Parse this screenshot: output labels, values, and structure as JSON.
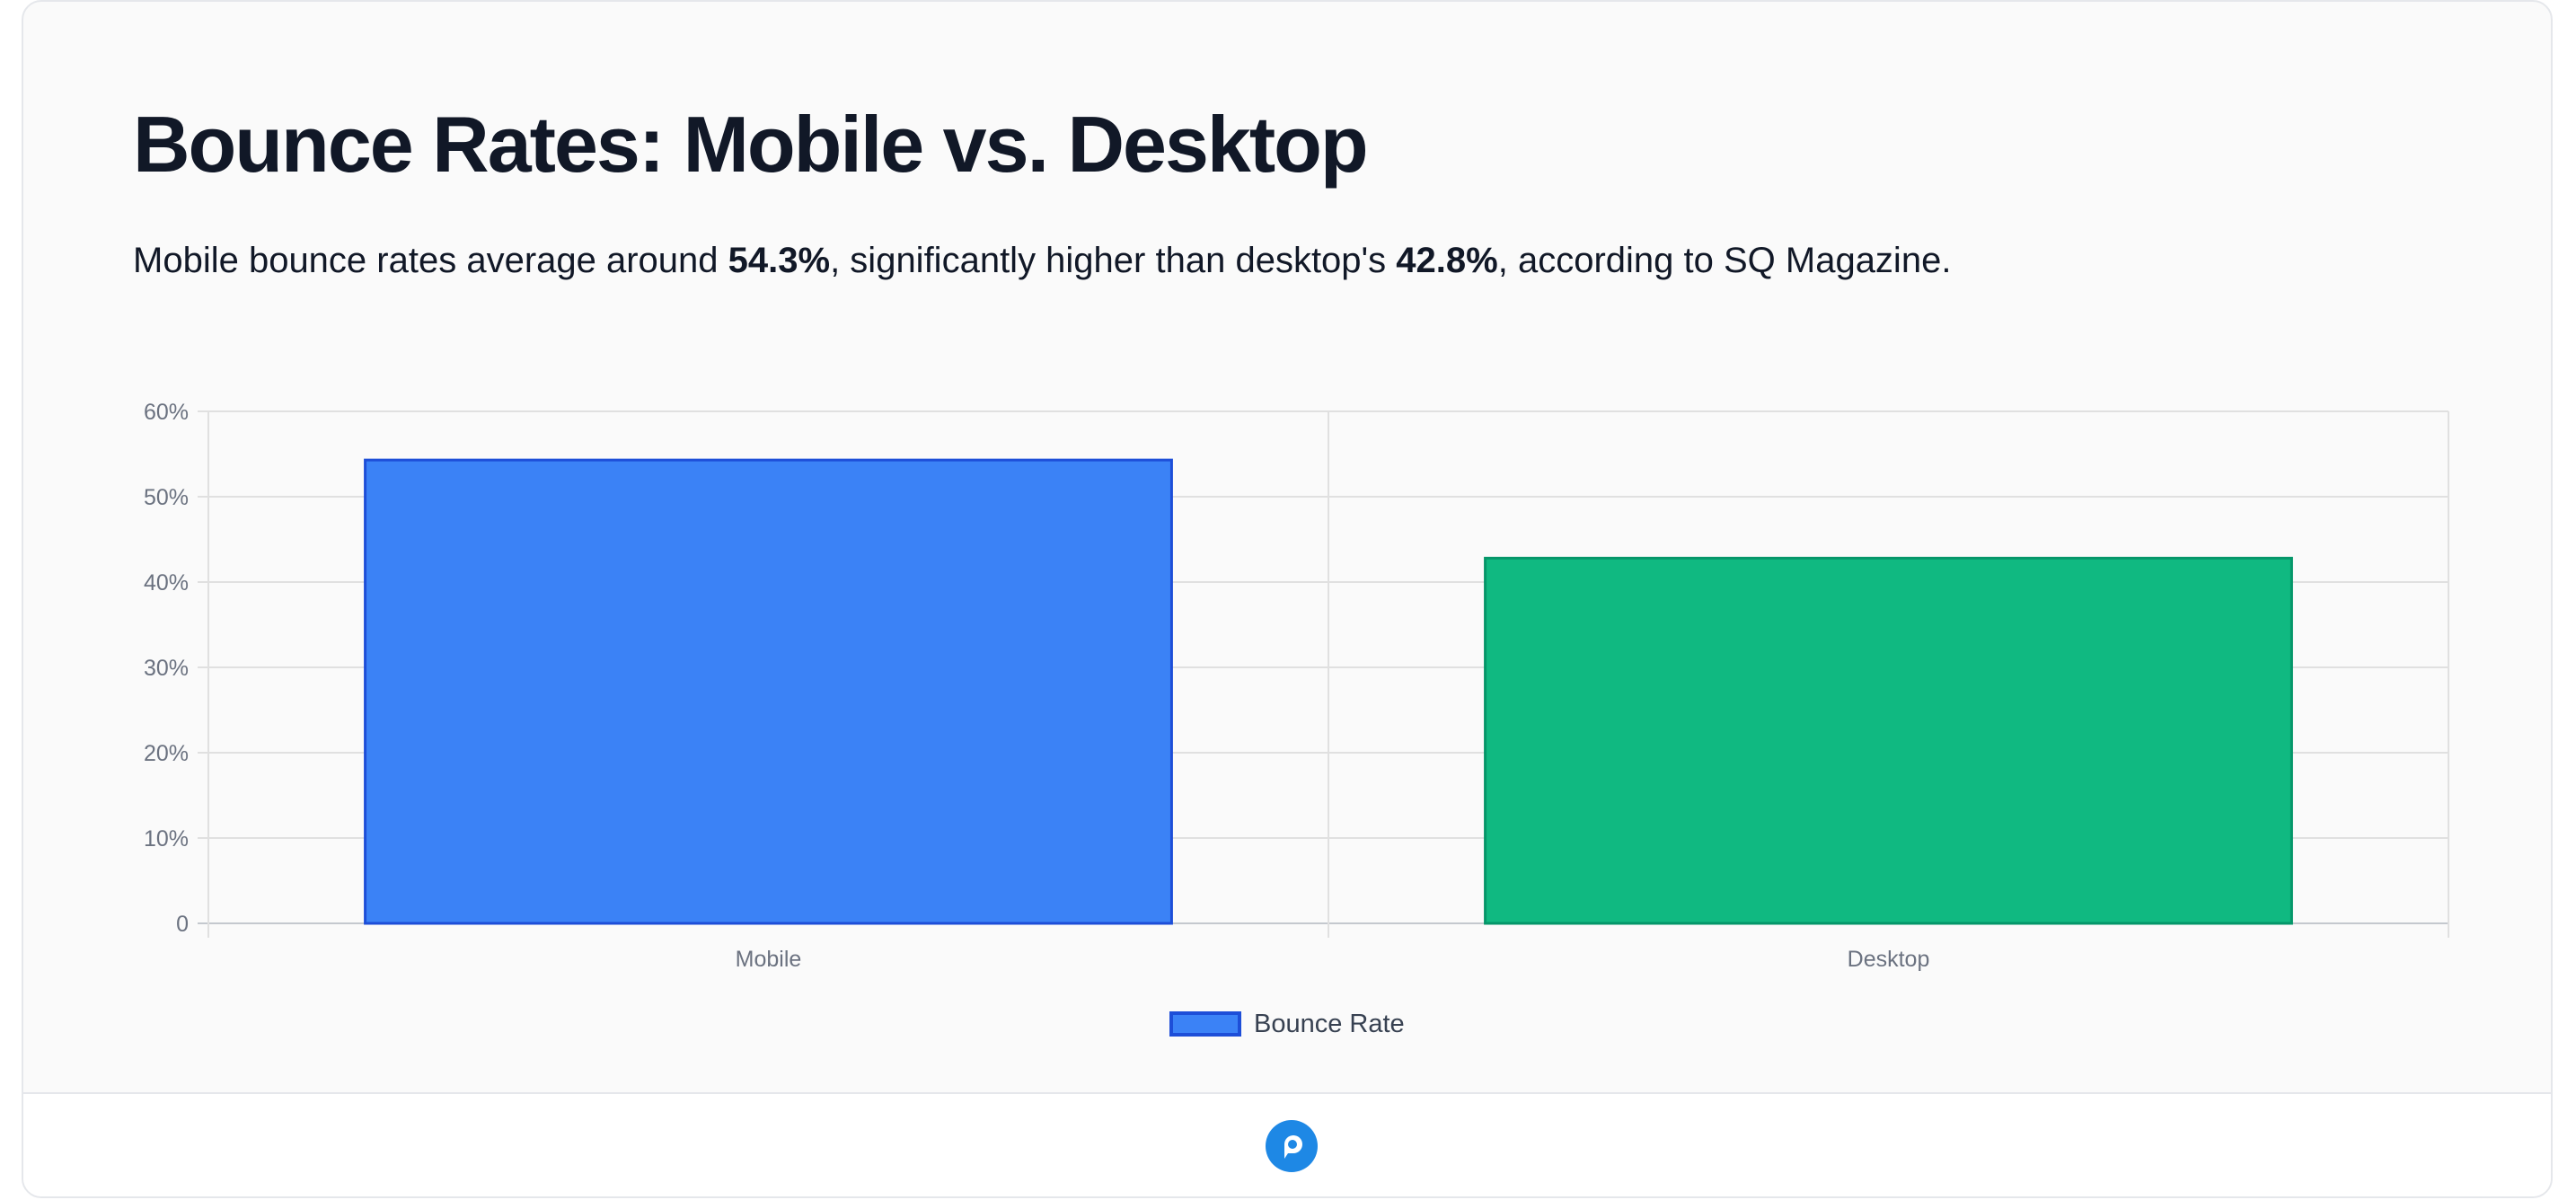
{
  "header": {
    "title": "Bounce Rates: Mobile vs. Desktop",
    "subtitle_pre": "Mobile bounce rates average around ",
    "subtitle_value_1": "54.3%",
    "subtitle_mid": ", significantly higher than desktop's ",
    "subtitle_value_2": "42.8%",
    "subtitle_post": ", according to SQ Magazine."
  },
  "chart_data": {
    "type": "bar",
    "categories": [
      "Mobile",
      "Desktop"
    ],
    "series": [
      {
        "name": "Bounce Rate",
        "values": [
          54.3,
          42.8
        ],
        "colors": [
          "#3b82f6",
          "#10b981"
        ],
        "border_colors": [
          "#1d4ed8",
          "#059669"
        ]
      }
    ],
    "ylim": [
      0,
      60
    ],
    "y_ticks": [
      0,
      10,
      20,
      30,
      40,
      50,
      60
    ],
    "y_tick_labels": [
      "0",
      "10%",
      "20%",
      "30%",
      "40%",
      "50%",
      "60%"
    ],
    "xlabel": "",
    "ylabel": "",
    "grid": true,
    "legend_position": "bottom"
  },
  "footer": {
    "logo_icon": "chat-bubble-logo-icon",
    "logo_color": "#1e88e5"
  }
}
